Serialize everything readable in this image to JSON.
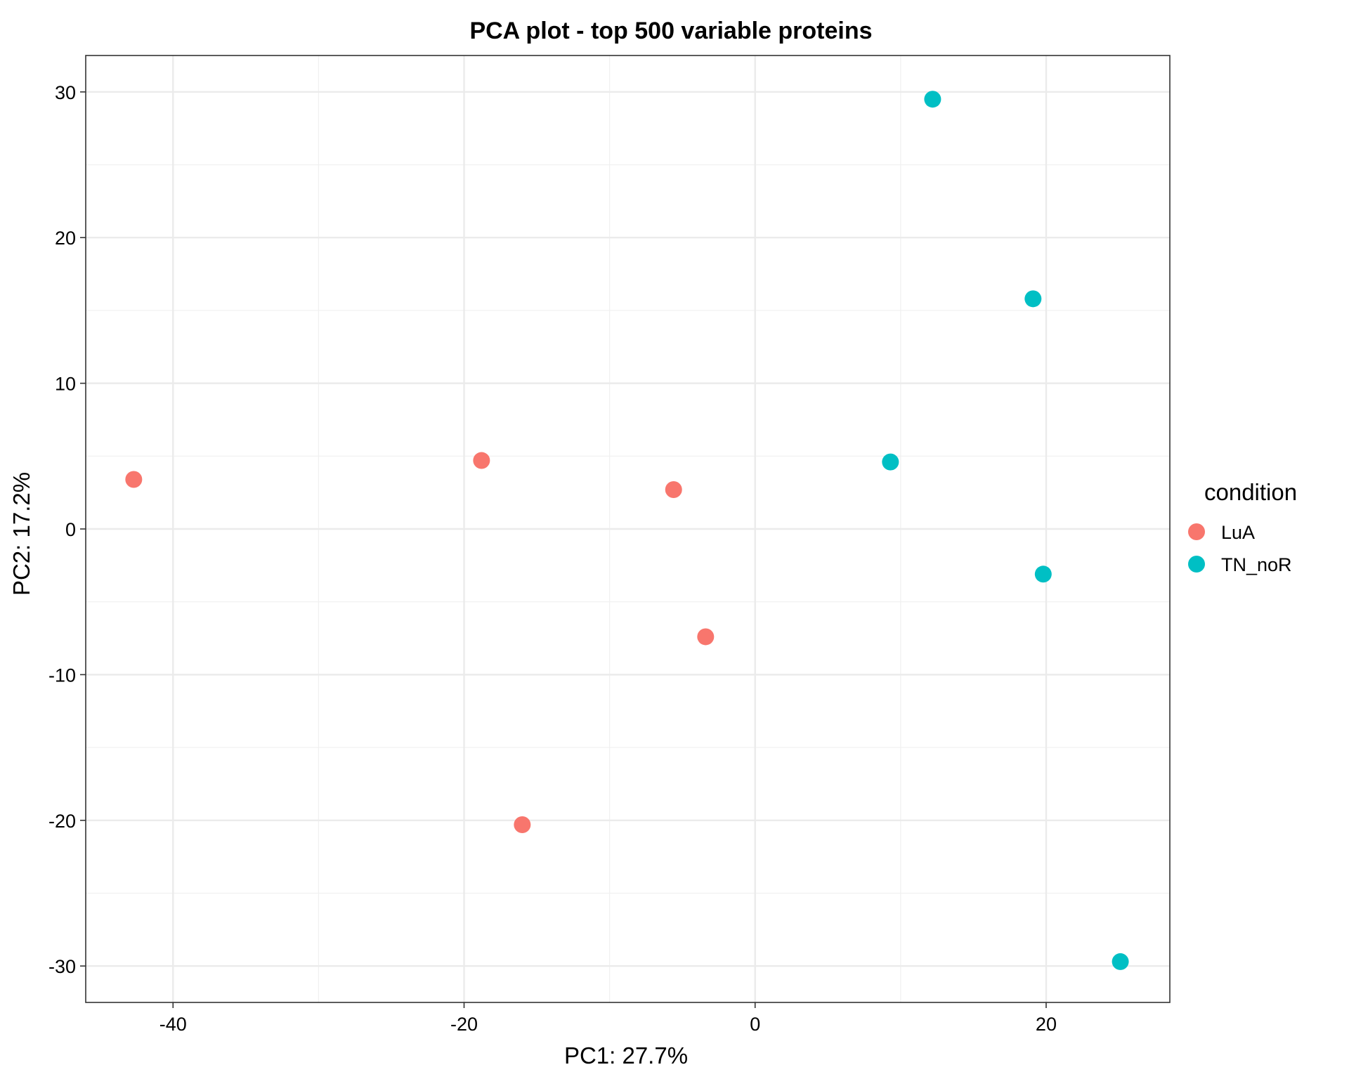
{
  "chart_data": {
    "type": "scatter",
    "title": "PCA plot - top 500 variable proteins",
    "xlabel": "PC1: 27.7%",
    "ylabel": "PC2: 17.2%",
    "xlim": [
      -46,
      28.5
    ],
    "ylim": [
      -32.5,
      32.5
    ],
    "xticks": [
      -40,
      -20,
      0,
      20
    ],
    "yticks": [
      -30,
      -20,
      -10,
      0,
      10,
      20,
      30
    ],
    "xtick_labels": [
      "-40",
      "-20",
      "0",
      "20"
    ],
    "ytick_labels": [
      "-30",
      "-20",
      "-10",
      "0",
      "10",
      "20",
      "30"
    ],
    "grid": true,
    "legend": {
      "title": "condition",
      "placement": "right"
    },
    "series": [
      {
        "name": "LuA",
        "color": "#F8766D",
        "points": [
          {
            "x": -42.7,
            "y": 3.4
          },
          {
            "x": -18.8,
            "y": 4.7
          },
          {
            "x": -5.6,
            "y": 2.7
          },
          {
            "x": -3.4,
            "y": -7.4
          },
          {
            "x": -16.0,
            "y": -20.3
          }
        ]
      },
      {
        "name": "TN_noR",
        "color": "#00BFC4",
        "points": [
          {
            "x": 12.2,
            "y": 29.5
          },
          {
            "x": 19.1,
            "y": 15.8
          },
          {
            "x": 9.3,
            "y": 4.6
          },
          {
            "x": 19.8,
            "y": -3.1
          },
          {
            "x": 25.1,
            "y": -29.7
          }
        ]
      }
    ]
  }
}
